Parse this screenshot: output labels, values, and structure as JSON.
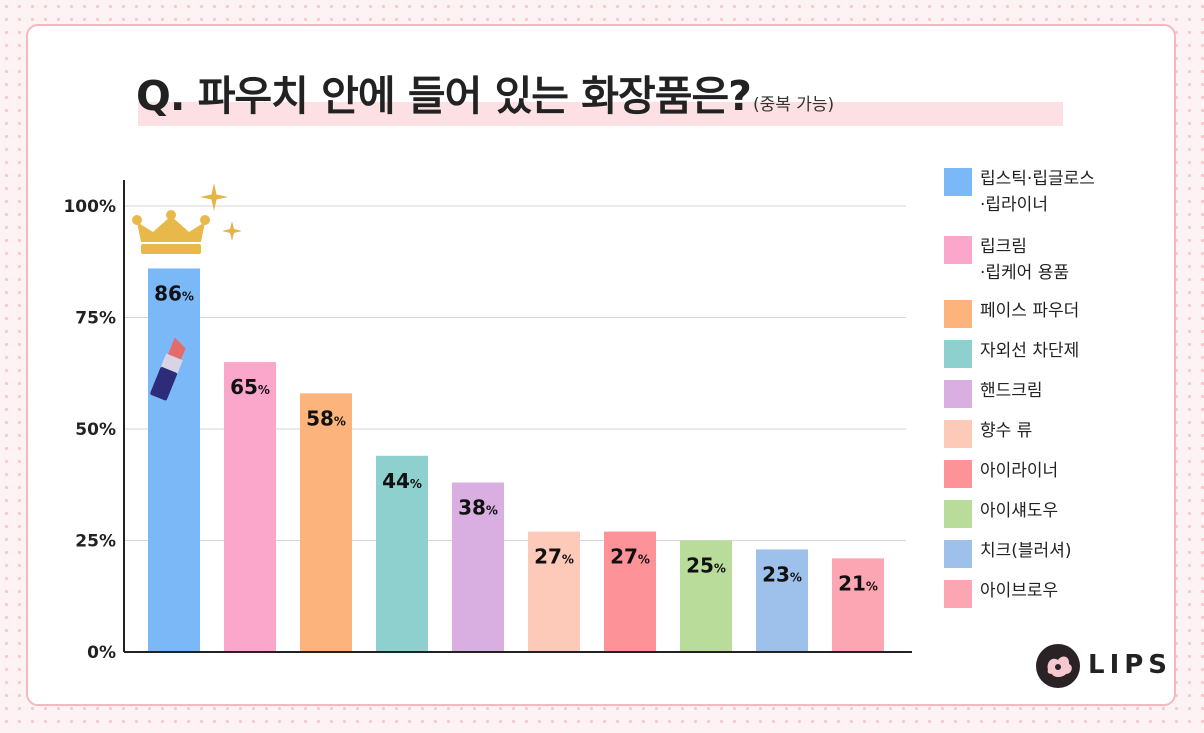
{
  "title": {
    "main": "Q. 파우치 안에 들어 있는 화장품은?",
    "sub": "(중복 가능)"
  },
  "chart_data": {
    "type": "bar",
    "title": "Q. 파우치 안에 들어 있는 화장품은?(중복 가능)",
    "categories": [
      "립스틱·립글로스·립라이너",
      "립크림·립케어 용품",
      "페이스 파우더",
      "자외선 차단제",
      "핸드크림",
      "향수 류",
      "아이라이너",
      "아이섀도우",
      "치크(블러셔)",
      "아이브로우"
    ],
    "values": [
      86,
      65,
      58,
      44,
      38,
      27,
      27,
      25,
      23,
      21
    ],
    "value_suffix": "%",
    "colors": [
      "#7ab8f8",
      "#fba7cb",
      "#fdb47c",
      "#8ed0cd",
      "#d9aee0",
      "#fdc9b9",
      "#fd9299",
      "#b9dc9a",
      "#9ec1eb",
      "#fca6b3"
    ],
    "ylim": [
      0,
      100
    ],
    "yticks": [
      0,
      25,
      50,
      75,
      100
    ],
    "ytick_labels": [
      "0%",
      "25%",
      "50%",
      "75%",
      "100%"
    ],
    "grid": true,
    "legend_position": "right"
  },
  "legend": {
    "items": [
      {
        "label_lines": [
          "립스틱·립글로스",
          "·립라이너"
        ],
        "color": "#7ab8f8"
      },
      {
        "label_lines": [
          "립크림",
          "·립케어 용품"
        ],
        "color": "#fba7cb"
      },
      {
        "label_lines": [
          "페이스 파우더"
        ],
        "color": "#fdb47c"
      },
      {
        "label_lines": [
          "자외선 차단제"
        ],
        "color": "#8ed0cd"
      },
      {
        "label_lines": [
          "핸드크림"
        ],
        "color": "#d9aee0"
      },
      {
        "label_lines": [
          "향수 류"
        ],
        "color": "#fdc9b9"
      },
      {
        "label_lines": [
          "아이라이너"
        ],
        "color": "#fd9299"
      },
      {
        "label_lines": [
          "아이섀도우"
        ],
        "color": "#b9dc9a"
      },
      {
        "label_lines": [
          "치크(블러셔)"
        ],
        "color": "#9ec1eb"
      },
      {
        "label_lines": [
          "아이브로우"
        ],
        "color": "#fca6b3"
      }
    ]
  },
  "brand": {
    "name": "LIPS"
  },
  "icons": [
    "crown-icon",
    "sparkle-icon",
    "lipstick-icon",
    "lips-logo-icon"
  ]
}
